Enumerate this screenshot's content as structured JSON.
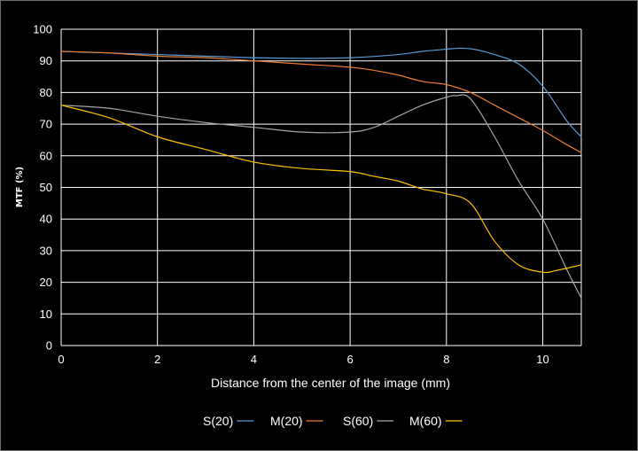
{
  "chart_data": {
    "type": "line",
    "xlabel": "Distance from the center of the image (mm)",
    "ylabel": "MTF (%)",
    "xlim": [
      0,
      10.8
    ],
    "ylim": [
      0,
      100
    ],
    "xticks": [
      0,
      2,
      4,
      6,
      8,
      10
    ],
    "yticks": [
      0,
      10,
      20,
      30,
      40,
      50,
      60,
      70,
      80,
      90,
      100
    ],
    "grid": true,
    "legend_position": "bottom",
    "series": [
      {
        "name": "S(20)",
        "color": "#5b9bd5",
        "x": [
          0,
          1,
          2,
          3,
          4,
          5,
          6,
          7,
          7.5,
          8,
          8.3,
          8.6,
          9,
          9.5,
          10,
          10.5,
          10.8
        ],
        "y": [
          93,
          92.5,
          92,
          91.5,
          91,
          90.8,
          91,
          92,
          93,
          93.7,
          94,
          93.6,
          92,
          89,
          82,
          71,
          66
        ]
      },
      {
        "name": "M(20)",
        "color": "#ed7d31",
        "x": [
          0,
          1,
          2,
          3,
          4,
          5,
          6,
          6.5,
          7,
          7.5,
          8,
          8.5,
          9,
          9.5,
          10,
          10.5,
          10.8
        ],
        "y": [
          93,
          92.5,
          91.5,
          91,
          90,
          89,
          88,
          87,
          85.5,
          83.5,
          82.5,
          80,
          76,
          72,
          68,
          63.5,
          61
        ]
      },
      {
        "name": "S(60)",
        "color": "#a5a5a5",
        "x": [
          0,
          1,
          2,
          3,
          4,
          5,
          6,
          6.5,
          7,
          7.5,
          8,
          8.2,
          8.5,
          9,
          9.5,
          10,
          10.5,
          10.8
        ],
        "y": [
          76,
          75,
          72.5,
          70.5,
          69,
          67.5,
          67.5,
          69,
          72.5,
          76,
          78.5,
          79,
          78,
          66,
          52,
          40,
          24,
          15
        ]
      },
      {
        "name": "M(60)",
        "color": "#ffc000",
        "x": [
          0,
          1,
          2,
          3,
          4,
          5,
          6,
          6.5,
          7,
          7.5,
          8,
          8.5,
          9,
          9.5,
          10,
          10.3,
          10.8
        ],
        "y": [
          76,
          72,
          66,
          62,
          58,
          56,
          55,
          53.5,
          52,
          49.5,
          48,
          45,
          33,
          25.5,
          23.2,
          23.8,
          25.5
        ]
      }
    ]
  }
}
